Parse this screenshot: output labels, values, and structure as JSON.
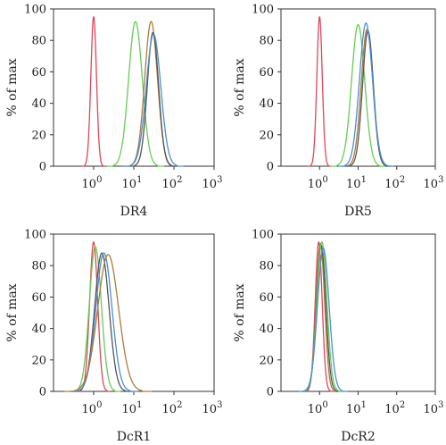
{
  "chart_data": [
    {
      "type": "line",
      "panel_label": "DR4",
      "ylabel": "% of max",
      "xscale": "log",
      "xlim": [
        0.1,
        1000
      ],
      "ylim": [
        0,
        100
      ],
      "xticks": [
        1,
        10,
        100,
        1000
      ],
      "yticks": [
        0,
        20,
        40,
        60,
        80,
        100
      ],
      "series": [
        {
          "color": "#e0455a",
          "peak_x": 1.0,
          "peak_y": 95,
          "width": 0.07
        },
        {
          "color": "#66cc55",
          "peak_x": 11,
          "peak_y": 92,
          "width": 0.17
        },
        {
          "color": "#b07a3c",
          "peak_x": 27,
          "peak_y": 92,
          "width": 0.16
        },
        {
          "color": "#555555",
          "peak_x": 30,
          "peak_y": 85,
          "width": 0.14
        },
        {
          "color": "#4a8fd0",
          "peak_x": 31,
          "peak_y": 84,
          "width": 0.18
        }
      ]
    },
    {
      "type": "line",
      "panel_label": "DR5",
      "ylabel": "% of max",
      "xscale": "log",
      "xlim": [
        0.1,
        1000
      ],
      "ylim": [
        0,
        100
      ],
      "xticks": [
        1,
        10,
        100,
        1000
      ],
      "yticks": [
        0,
        20,
        40,
        60,
        80,
        100
      ],
      "series": [
        {
          "color": "#e0455a",
          "peak_x": 1.0,
          "peak_y": 95,
          "width": 0.07
        },
        {
          "color": "#66cc55",
          "peak_x": 10,
          "peak_y": 90,
          "width": 0.17
        },
        {
          "color": "#b07a3c",
          "peak_x": 17,
          "peak_y": 87,
          "width": 0.15
        },
        {
          "color": "#555555",
          "peak_x": 18,
          "peak_y": 86,
          "width": 0.14
        },
        {
          "color": "#4a8fd0",
          "peak_x": 16,
          "peak_y": 91,
          "width": 0.17
        }
      ]
    },
    {
      "type": "line",
      "panel_label": "DcR1",
      "ylabel": "% of max",
      "xscale": "log",
      "xlim": [
        0.1,
        1000
      ],
      "ylim": [
        0,
        100
      ],
      "xticks": [
        1,
        10,
        100,
        1000
      ],
      "yticks": [
        0,
        20,
        40,
        60,
        80,
        100
      ],
      "series": [
        {
          "color": "#e0455a",
          "peak_x": 1.0,
          "peak_y": 95,
          "width": 0.1
        },
        {
          "color": "#66cc55",
          "peak_x": 1.1,
          "peak_y": 92,
          "width": 0.15
        },
        {
          "color": "#555555",
          "peak_x": 1.6,
          "peak_y": 88,
          "width": 0.18
        },
        {
          "color": "#4a8fd0",
          "peak_x": 1.8,
          "peak_y": 88,
          "width": 0.2
        },
        {
          "color": "#b07a3c",
          "peak_x": 2.3,
          "peak_y": 87,
          "width": 0.26
        }
      ]
    },
    {
      "type": "line",
      "panel_label": "DcR2",
      "ylabel": "% of max",
      "xscale": "log",
      "xlim": [
        0.1,
        1000
      ],
      "ylim": [
        0,
        100
      ],
      "xticks": [
        1,
        10,
        100,
        1000
      ],
      "yticks": [
        0,
        20,
        40,
        60,
        80,
        100
      ],
      "series": [
        {
          "color": "#e0455a",
          "peak_x": 0.95,
          "peak_y": 95,
          "width": 0.09
        },
        {
          "color": "#b07a3c",
          "peak_x": 1.05,
          "peak_y": 94,
          "width": 0.11
        },
        {
          "color": "#555555",
          "peak_x": 1.1,
          "peak_y": 93,
          "width": 0.12
        },
        {
          "color": "#66cc55",
          "peak_x": 1.15,
          "peak_y": 95,
          "width": 0.13
        },
        {
          "color": "#4a8fd0",
          "peak_x": 1.25,
          "peak_y": 91,
          "width": 0.15
        }
      ]
    }
  ]
}
